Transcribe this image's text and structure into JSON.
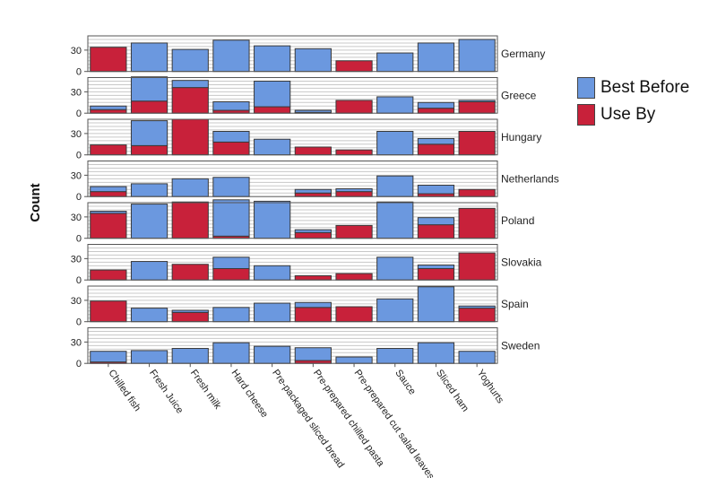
{
  "chart_data": {
    "type": "bar",
    "subtype": "stacked-faceted",
    "ylabel": "Count",
    "yticks": [
      0,
      30
    ],
    "ylim": [
      0,
      50
    ],
    "gridlines": true,
    "legend_position": "right",
    "categories": [
      "Chilled fish",
      "Fresh Juice",
      "Fresh milk",
      "Hard cheese",
      "Pre-packaged sliced bread",
      "Pre-prepared chilled pasta",
      "Pre-prepared cut salad leaves",
      "Sauce",
      "Sliced ham",
      "Yoghurts"
    ],
    "series": [
      {
        "name": "Best Before",
        "color": "#6b98df"
      },
      {
        "name": "Use By",
        "color": "#c8213a"
      }
    ],
    "facets": [
      {
        "name": "Germany",
        "best_before": [
          0,
          40,
          31,
          44,
          36,
          32,
          0,
          26,
          40,
          45
        ],
        "use_by": [
          34,
          0,
          0,
          0,
          0,
          0,
          15,
          0,
          0,
          0
        ]
      },
      {
        "name": "Greece",
        "best_before": [
          5,
          34,
          10,
          12,
          36,
          3,
          0,
          23,
          8,
          2
        ],
        "use_by": [
          5,
          17,
          36,
          4,
          9,
          1,
          18,
          0,
          7,
          16
        ]
      },
      {
        "name": "Hungary",
        "best_before": [
          0,
          35,
          0,
          15,
          22,
          0,
          0,
          33,
          8,
          0
        ],
        "use_by": [
          14,
          13,
          50,
          18,
          0,
          11,
          7,
          0,
          15,
          33
        ]
      },
      {
        "name": "Netherlands",
        "best_before": [
          7,
          18,
          25,
          27,
          0,
          5,
          4,
          29,
          12,
          0
        ],
        "use_by": [
          7,
          0,
          0,
          0,
          0,
          5,
          7,
          0,
          4,
          10
        ]
      },
      {
        "name": "Poland",
        "best_before": [
          3,
          48,
          0,
          51,
          52,
          4,
          0,
          51,
          10,
          0
        ],
        "use_by": [
          35,
          0,
          51,
          3,
          0,
          8,
          18,
          0,
          19,
          42
        ]
      },
      {
        "name": "Slovakia",
        "best_before": [
          0,
          26,
          0,
          16,
          20,
          0,
          0,
          32,
          5,
          0
        ],
        "use_by": [
          14,
          0,
          22,
          16,
          0,
          6,
          9,
          0,
          16,
          38
        ]
      },
      {
        "name": "Spain",
        "best_before": [
          0,
          19,
          3,
          20,
          26,
          7,
          0,
          32,
          49,
          3
        ],
        "use_by": [
          29,
          0,
          13,
          0,
          0,
          20,
          21,
          0,
          0,
          19
        ]
      },
      {
        "name": "Sweden",
        "best_before": [
          15,
          18,
          21,
          29,
          24,
          18,
          9,
          21,
          29,
          17
        ],
        "use_by": [
          2,
          0,
          0,
          0,
          0,
          4,
          0,
          0,
          0,
          0
        ]
      }
    ]
  }
}
